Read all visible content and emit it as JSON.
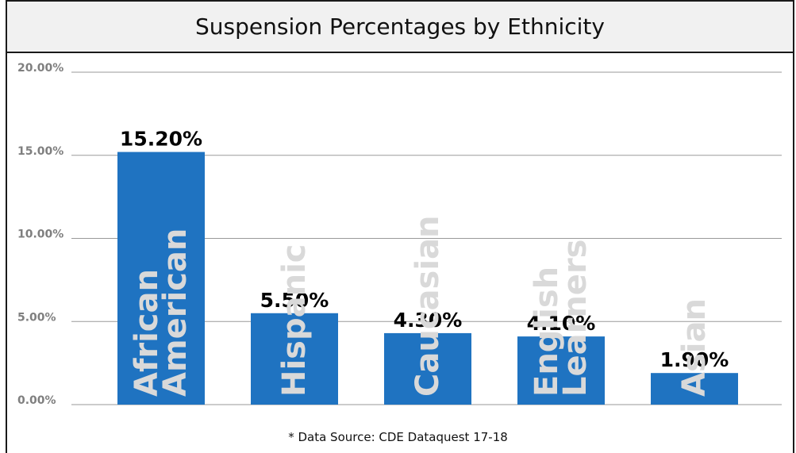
{
  "chart_data": {
    "type": "bar",
    "title": "Suspension Percentages by Ethnicity",
    "categories": [
      "African American",
      "Hispanic",
      "Caucasian",
      "English Learners",
      "Asian"
    ],
    "category_lines": [
      [
        "African",
        "American"
      ],
      [
        "Hispanic"
      ],
      [
        "Caucasian"
      ],
      [
        "English",
        "Learners"
      ],
      [
        "Asian"
      ]
    ],
    "values": [
      15.2,
      5.5,
      4.3,
      4.1,
      1.9
    ],
    "data_labels": [
      "15.20%",
      "5.50%",
      "4.30%",
      "4.10%",
      "1.90%"
    ],
    "y_ticks": [
      0,
      5,
      10,
      15,
      20
    ],
    "y_tick_labels": [
      "0.00%",
      "5.00%",
      "10.00%",
      "15.00%",
      "20.00%"
    ],
    "ylim": [
      0,
      20
    ],
    "grid": true,
    "xlabel": "",
    "ylabel": "",
    "bar_color": "#1f73c1",
    "category_label_color": "#d9d9d9"
  },
  "footer": {
    "source": "* Data Source: CDE Dataquest 17-18"
  }
}
